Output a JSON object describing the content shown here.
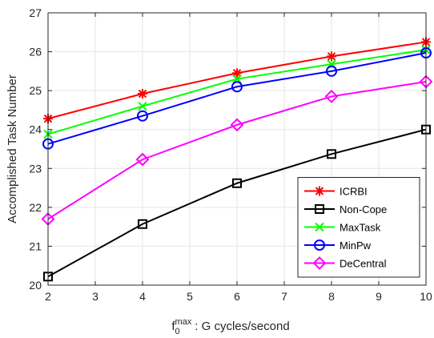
{
  "chart_data": {
    "type": "line",
    "title": "",
    "xlabel": {
      "base": "f",
      "subscript": "0",
      "superscript": "max",
      "suffix": ": G cycles/second"
    },
    "ylabel": "Accomplished Task Number",
    "xlim": [
      2,
      10
    ],
    "ylim": [
      20,
      27
    ],
    "xticks": [
      "2",
      "3",
      "4",
      "5",
      "6",
      "7",
      "8",
      "9",
      "10"
    ],
    "yticks": [
      "20",
      "21",
      "22",
      "23",
      "24",
      "25",
      "26",
      "27"
    ],
    "grid": true,
    "legend_position": "bottom-right",
    "x": [
      2,
      4,
      6,
      8,
      10
    ],
    "series": [
      {
        "name": "ICRBI",
        "color": "#ff0000",
        "marker": "asterisk",
        "values": [
          24.28,
          24.92,
          25.45,
          25.88,
          26.25
        ]
      },
      {
        "name": "Non-Cope",
        "color": "#000000",
        "marker": "square",
        "values": [
          20.22,
          21.57,
          22.62,
          23.37,
          24.0
        ]
      },
      {
        "name": "MaxTask",
        "color": "#00ff00",
        "marker": "x",
        "values": [
          23.88,
          24.6,
          25.3,
          25.68,
          26.05
        ]
      },
      {
        "name": "MinPw",
        "color": "#0000ff",
        "marker": "circle",
        "values": [
          23.63,
          24.35,
          25.1,
          25.5,
          25.97
        ]
      },
      {
        "name": "DeCentral",
        "color": "#ff00ff",
        "marker": "diamond",
        "values": [
          21.7,
          23.23,
          24.12,
          24.85,
          25.23
        ]
      }
    ]
  }
}
